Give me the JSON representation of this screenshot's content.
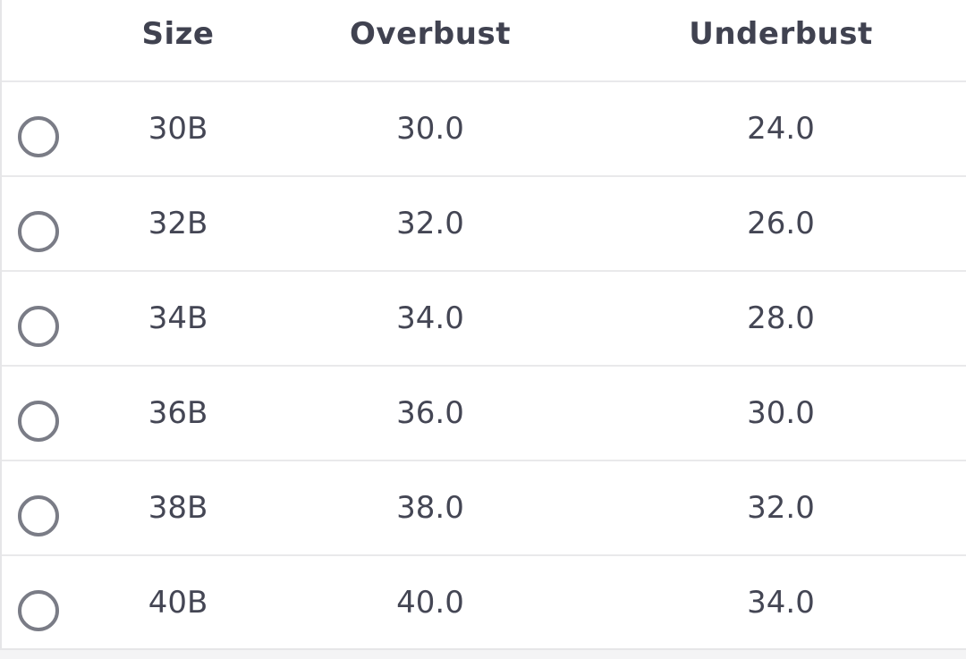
{
  "table": {
    "headers": [
      "Size",
      "Overbust",
      "Underbust"
    ],
    "rows": [
      {
        "size": "30B",
        "overbust": "30.0",
        "underbust": "24.0",
        "selected": false
      },
      {
        "size": "32B",
        "overbust": "32.0",
        "underbust": "26.0",
        "selected": false
      },
      {
        "size": "34B",
        "overbust": "34.0",
        "underbust": "28.0",
        "selected": false
      },
      {
        "size": "36B",
        "overbust": "36.0",
        "underbust": "30.0",
        "selected": false
      },
      {
        "size": "38B",
        "overbust": "38.0",
        "underbust": "32.0",
        "selected": false
      },
      {
        "size": "40B",
        "overbust": "40.0",
        "underbust": "34.0",
        "selected": false
      }
    ]
  },
  "colors": {
    "radio_border": "#7a7c86",
    "text": "#444654",
    "divider": "#e9e9eb"
  }
}
